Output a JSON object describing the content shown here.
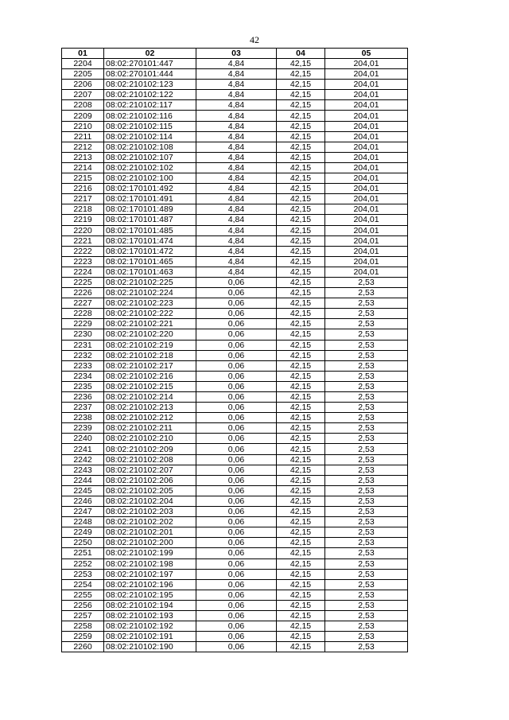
{
  "page_number": "42",
  "table": {
    "headers": [
      "01",
      "02",
      "03",
      "04",
      "05"
    ],
    "rows": [
      [
        "2204",
        "08:02:270101:447",
        "4,84",
        "42,15",
        "204,01"
      ],
      [
        "2205",
        "08:02:270101:444",
        "4,84",
        "42,15",
        "204,01"
      ],
      [
        "2206",
        "08:02:210102:123",
        "4,84",
        "42,15",
        "204,01"
      ],
      [
        "2207",
        "08:02:210102:122",
        "4,84",
        "42,15",
        "204,01"
      ],
      [
        "2208",
        "08:02:210102:117",
        "4,84",
        "42,15",
        "204,01"
      ],
      [
        "2209",
        "08:02:210102:116",
        "4,84",
        "42,15",
        "204,01"
      ],
      [
        "2210",
        "08:02:210102:115",
        "4,84",
        "42,15",
        "204,01"
      ],
      [
        "2211",
        "08:02:210102:114",
        "4,84",
        "42,15",
        "204,01"
      ],
      [
        "2212",
        "08:02:210102:108",
        "4,84",
        "42,15",
        "204,01"
      ],
      [
        "2213",
        "08:02:210102:107",
        "4,84",
        "42,15",
        "204,01"
      ],
      [
        "2214",
        "08:02:210102:102",
        "4,84",
        "42,15",
        "204,01"
      ],
      [
        "2215",
        "08:02:210102:100",
        "4,84",
        "42,15",
        "204,01"
      ],
      [
        "2216",
        "08:02:170101:492",
        "4,84",
        "42,15",
        "204,01"
      ],
      [
        "2217",
        "08:02:170101:491",
        "4,84",
        "42,15",
        "204,01"
      ],
      [
        "2218",
        "08:02:170101:489",
        "4,84",
        "42,15",
        "204,01"
      ],
      [
        "2219",
        "08:02:170101:487",
        "4,84",
        "42,15",
        "204,01"
      ],
      [
        "2220",
        "08:02:170101:485",
        "4,84",
        "42,15",
        "204,01"
      ],
      [
        "2221",
        "08:02:170101:474",
        "4,84",
        "42,15",
        "204,01"
      ],
      [
        "2222",
        "08:02:170101:472",
        "4,84",
        "42,15",
        "204,01"
      ],
      [
        "2223",
        "08:02:170101:465",
        "4,84",
        "42,15",
        "204,01"
      ],
      [
        "2224",
        "08:02:170101:463",
        "4,84",
        "42,15",
        "204,01"
      ],
      [
        "2225",
        "08:02:210102:225",
        "0,06",
        "42,15",
        "2,53"
      ],
      [
        "2226",
        "08:02:210102:224",
        "0,06",
        "42,15",
        "2,53"
      ],
      [
        "2227",
        "08:02:210102:223",
        "0,06",
        "42,15",
        "2,53"
      ],
      [
        "2228",
        "08:02:210102:222",
        "0,06",
        "42,15",
        "2,53"
      ],
      [
        "2229",
        "08:02:210102:221",
        "0,06",
        "42,15",
        "2,53"
      ],
      [
        "2230",
        "08:02:210102:220",
        "0,06",
        "42,15",
        "2,53"
      ],
      [
        "2231",
        "08:02:210102:219",
        "0,06",
        "42,15",
        "2,53"
      ],
      [
        "2232",
        "08:02:210102:218",
        "0,06",
        "42,15",
        "2,53"
      ],
      [
        "2233",
        "08:02:210102:217",
        "0,06",
        "42,15",
        "2,53"
      ],
      [
        "2234",
        "08:02:210102:216",
        "0,06",
        "42,15",
        "2,53"
      ],
      [
        "2235",
        "08:02:210102:215",
        "0,06",
        "42,15",
        "2,53"
      ],
      [
        "2236",
        "08:02:210102:214",
        "0,06",
        "42,15",
        "2,53"
      ],
      [
        "2237",
        "08:02:210102:213",
        "0,06",
        "42,15",
        "2,53"
      ],
      [
        "2238",
        "08:02:210102:212",
        "0,06",
        "42,15",
        "2,53"
      ],
      [
        "2239",
        "08:02:210102:211",
        "0,06",
        "42,15",
        "2,53"
      ],
      [
        "2240",
        "08:02:210102:210",
        "0,06",
        "42,15",
        "2,53"
      ],
      [
        "2241",
        "08:02:210102:209",
        "0,06",
        "42,15",
        "2,53"
      ],
      [
        "2242",
        "08:02:210102:208",
        "0,06",
        "42,15",
        "2,53"
      ],
      [
        "2243",
        "08:02:210102:207",
        "0,06",
        "42,15",
        "2,53"
      ],
      [
        "2244",
        "08:02:210102:206",
        "0,06",
        "42,15",
        "2,53"
      ],
      [
        "2245",
        "08:02:210102:205",
        "0,06",
        "42,15",
        "2,53"
      ],
      [
        "2246",
        "08:02:210102:204",
        "0,06",
        "42,15",
        "2,53"
      ],
      [
        "2247",
        "08:02:210102:203",
        "0,06",
        "42,15",
        "2,53"
      ],
      [
        "2248",
        "08:02:210102:202",
        "0,06",
        "42,15",
        "2,53"
      ],
      [
        "2249",
        "08:02:210102:201",
        "0,06",
        "42,15",
        "2,53"
      ],
      [
        "2250",
        "08:02:210102:200",
        "0,06",
        "42,15",
        "2,53"
      ],
      [
        "2251",
        "08:02:210102:199",
        "0,06",
        "42,15",
        "2,53"
      ],
      [
        "2252",
        "08:02:210102:198",
        "0,06",
        "42,15",
        "2,53"
      ],
      [
        "2253",
        "08:02:210102:197",
        "0,06",
        "42,15",
        "2,53"
      ],
      [
        "2254",
        "08:02:210102:196",
        "0,06",
        "42,15",
        "2,53"
      ],
      [
        "2255",
        "08:02:210102:195",
        "0,06",
        "42,15",
        "2,53"
      ],
      [
        "2256",
        "08:02:210102:194",
        "0,06",
        "42,15",
        "2,53"
      ],
      [
        "2257",
        "08:02:210102:193",
        "0,06",
        "42,15",
        "2,53"
      ],
      [
        "2258",
        "08:02:210102:192",
        "0,06",
        "42,15",
        "2,53"
      ],
      [
        "2259",
        "08:02:210102:191",
        "0,06",
        "42,15",
        "2,53"
      ],
      [
        "2260",
        "08:02:210102:190",
        "0,06",
        "42,15",
        "2,53"
      ]
    ]
  }
}
